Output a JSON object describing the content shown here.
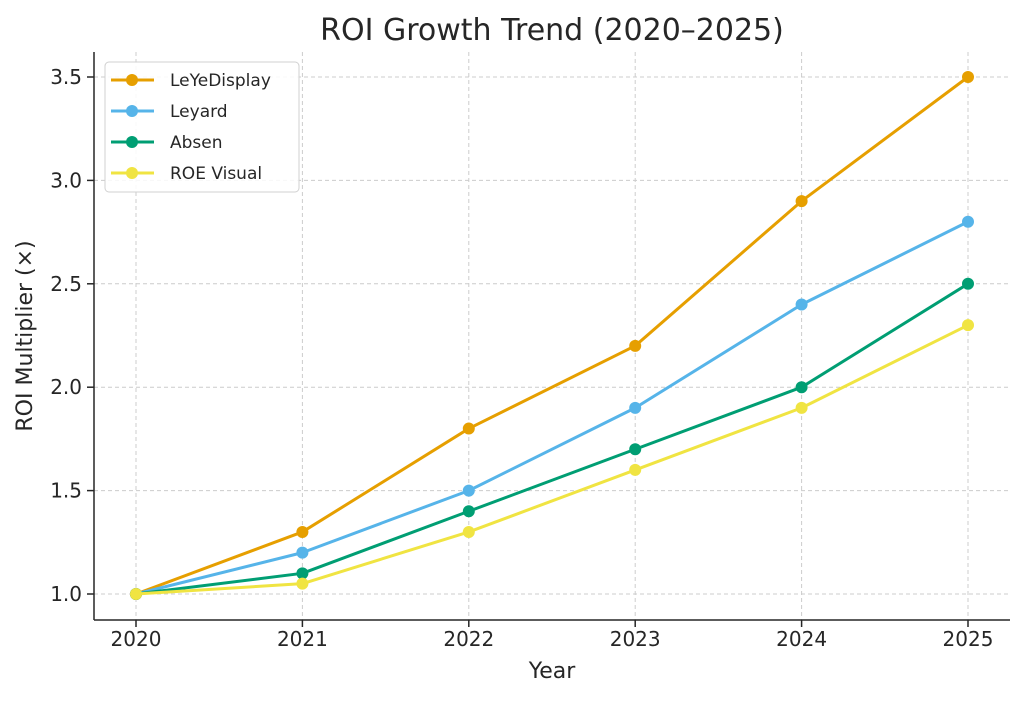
{
  "chart_data": {
    "type": "line",
    "title": "ROI Growth Trend (2020–2025)",
    "xlabel": "Year",
    "ylabel": "ROI Multiplier (×)",
    "x": [
      2020,
      2021,
      2022,
      2023,
      2024,
      2025
    ],
    "x_tick_labels": [
      "2020",
      "2021",
      "2022",
      "2023",
      "2024",
      "2025"
    ],
    "y_ticks": [
      1.0,
      1.5,
      2.0,
      2.5,
      3.0,
      3.5
    ],
    "y_tick_labels": [
      "1.0",
      "1.5",
      "2.0",
      "2.5",
      "3.0",
      "3.5"
    ],
    "ylim": [
      0.88,
      3.62
    ],
    "xlim": [
      2019.75,
      2025.25
    ],
    "grid": true,
    "legend_position": "top-left",
    "series": [
      {
        "name": "LeYeDisplay",
        "color": "#E69F00",
        "values": [
          1.0,
          1.3,
          1.8,
          2.2,
          2.9,
          3.5
        ]
      },
      {
        "name": "Leyard",
        "color": "#56B4E9",
        "values": [
          1.0,
          1.2,
          1.5,
          1.9,
          2.4,
          2.8
        ]
      },
      {
        "name": "Absen",
        "color": "#009E73",
        "values": [
          1.0,
          1.1,
          1.4,
          1.7,
          2.0,
          2.5
        ]
      },
      {
        "name": "ROE Visual",
        "color": "#F0E442",
        "values": [
          1.0,
          1.05,
          1.3,
          1.6,
          1.9,
          2.3
        ]
      }
    ]
  }
}
